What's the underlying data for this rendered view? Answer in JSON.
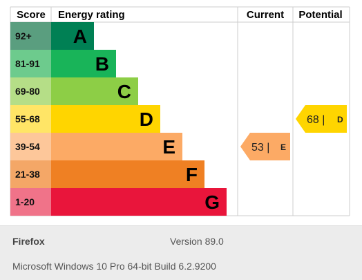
{
  "chart_data": {
    "type": "table",
    "headers": {
      "score": "Score",
      "rating": "Energy rating",
      "current": "Current",
      "potential": "Potential"
    },
    "bands": [
      {
        "letter": "A",
        "range": "92+",
        "color": "#008054",
        "score_color": "#5a9e7f"
      },
      {
        "letter": "B",
        "range": "81-91",
        "color": "#19b459",
        "score_color": "#6dcb8d"
      },
      {
        "letter": "C",
        "range": "69-80",
        "color": "#8dce46",
        "score_color": "#b5de87"
      },
      {
        "letter": "D",
        "range": "55-68",
        "color": "#ffd500",
        "score_color": "#ffe566"
      },
      {
        "letter": "E",
        "range": "39-54",
        "color": "#fcaa65",
        "score_color": "#fdc79a"
      },
      {
        "letter": "F",
        "range": "21-38",
        "color": "#ef8023",
        "score_color": "#f4a767"
      },
      {
        "letter": "G",
        "range": "1-20",
        "color": "#e9153b",
        "score_color": "#f07389"
      }
    ],
    "current": {
      "value": 53,
      "letter": "E",
      "band_index": 4,
      "label": "53 |",
      "color": "#fcaa65"
    },
    "potential": {
      "value": 68,
      "letter": "D",
      "band_index": 3,
      "label": "68 |",
      "color": "#ffd500"
    }
  },
  "footer": {
    "browser": "Firefox",
    "version": "Version 89.0",
    "os": "Microsoft Windows 10 Pro 64-bit Build 6.2.9200"
  }
}
